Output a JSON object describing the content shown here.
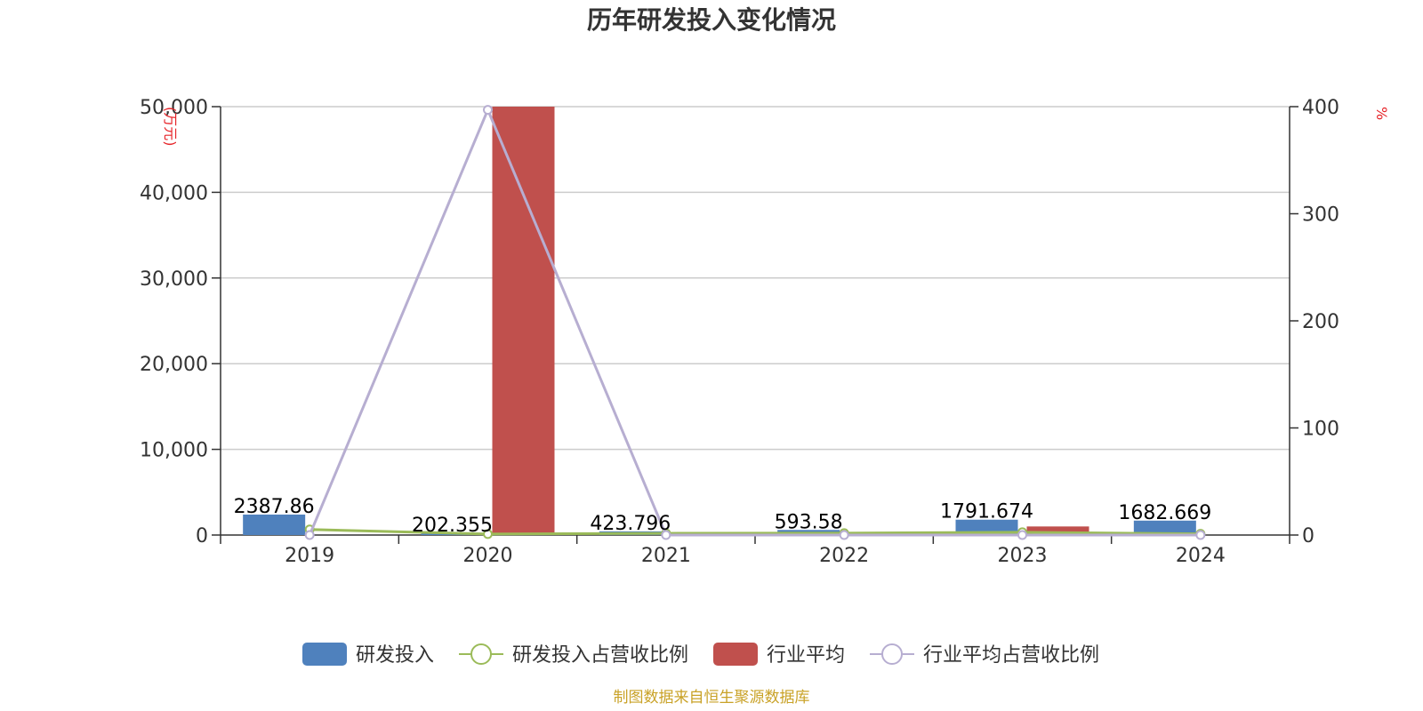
{
  "chart_data": {
    "type": "bar",
    "title": "历年研发投入变化情况",
    "categories": [
      "2019",
      "2020",
      "2021",
      "2022",
      "2023",
      "2024"
    ],
    "y_left": {
      "unit": "(万元)",
      "ylim": [
        0,
        50000
      ],
      "ticks": [
        "0",
        "10,000",
        "20,000",
        "30,000",
        "40,000",
        "50,000"
      ]
    },
    "y_right": {
      "unit": "%",
      "ylim": [
        0,
        400
      ],
      "ticks": [
        "0",
        "100",
        "200",
        "300",
        "400"
      ]
    },
    "series": [
      {
        "name": "研发投入",
        "kind": "bar",
        "axis": "left",
        "color": "#4f81bd",
        "values": [
          2387.86,
          202.355,
          423.796,
          593.58,
          1791.674,
          1682.669
        ],
        "labels": [
          "2387.86",
          "202.355",
          "423.796",
          "593.58",
          "1791.674",
          "1682.669"
        ]
      },
      {
        "name": "研发投入占营收比例",
        "kind": "line",
        "axis": "right",
        "color": "#9bbb59",
        "values": [
          5.2,
          0.9,
          1.6,
          1.8,
          2.6,
          1.1
        ]
      },
      {
        "name": "行业平均",
        "kind": "bar",
        "axis": "left",
        "color": "#c0504d",
        "values": [
          0,
          50000,
          0,
          0,
          1000,
          0
        ]
      },
      {
        "name": "行业平均占营收比例",
        "kind": "line",
        "axis": "right",
        "color": "#b7aed1",
        "values": [
          0,
          397,
          0,
          0,
          0,
          0
        ]
      }
    ],
    "grid": true,
    "legend": "bottom-center"
  },
  "footer": {
    "source": "制图数据来自恒生聚源数据库"
  }
}
